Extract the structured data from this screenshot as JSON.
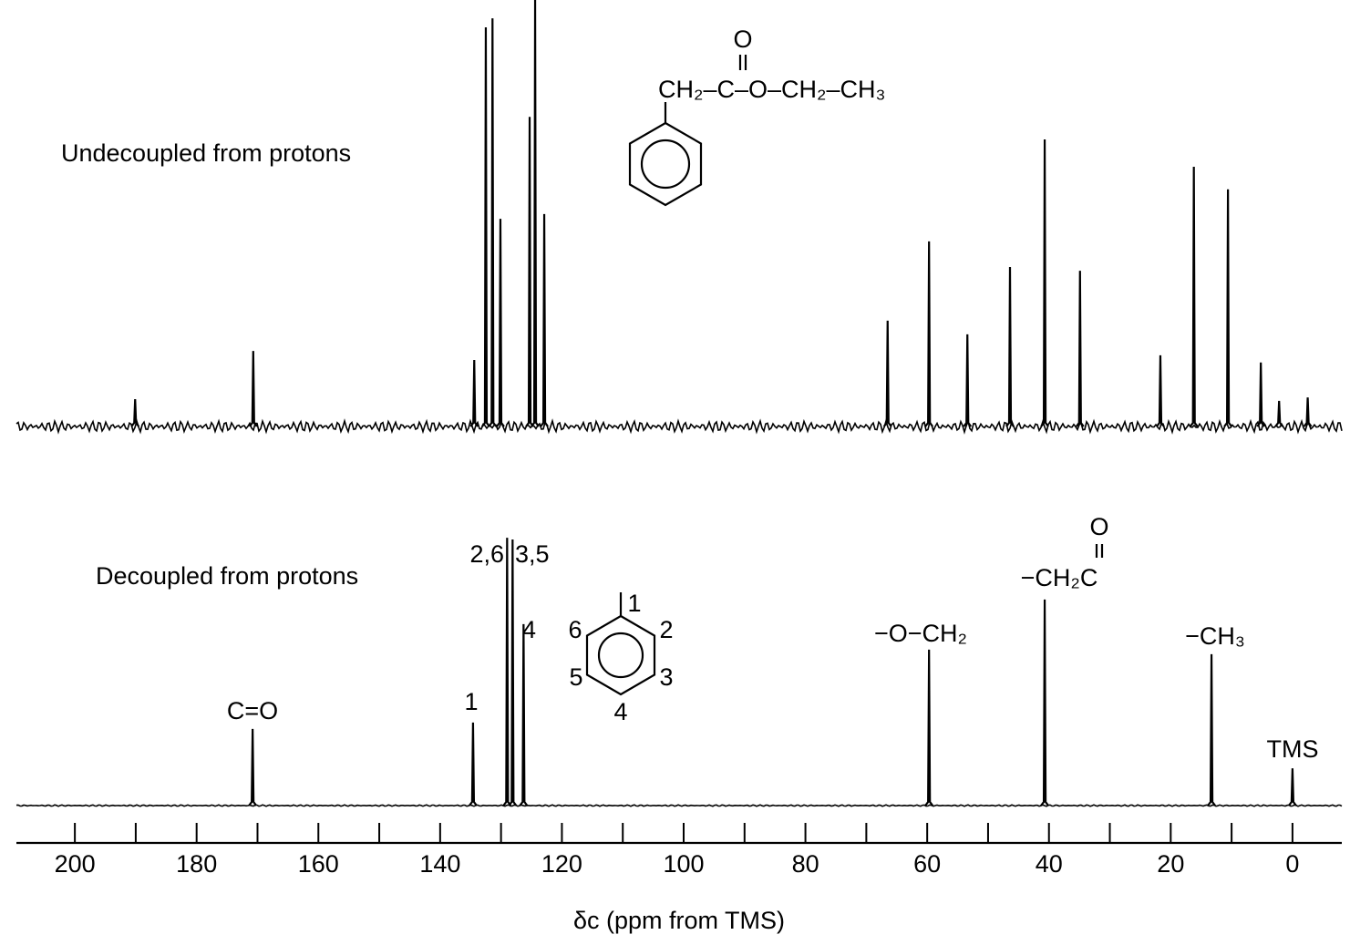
{
  "chart_data": [
    {
      "type": "spectrum",
      "title": "Undecoupled from protons",
      "x": [
        190.1,
        170.7,
        134.4,
        132.5,
        131.4,
        130.1,
        125.3,
        124.4,
        122.9,
        66.5,
        59.7,
        53.4,
        46.4,
        40.7,
        34.9,
        21.7,
        16.2,
        10.6,
        5.2,
        2.2,
        -2.5
      ],
      "values": [
        6.4,
        17.7,
        15.6,
        93.6,
        95.7,
        48.7,
        72.6,
        100,
        49.8,
        24.8,
        43.4,
        21.6,
        37.4,
        67.3,
        36.5,
        16.7,
        60.9,
        55.6,
        15,
        6,
        6.8
      ],
      "xlim": [
        209.6,
        -8.1
      ],
      "ylim": [
        0,
        100
      ],
      "color": "#000000",
      "annotations": [
        "CH₂–C–O–CH₂–CH₃",
        "O"
      ]
    },
    {
      "type": "spectrum",
      "title": "Decoupled from protons",
      "x": [
        170.8,
        134.6,
        129.0,
        128.1,
        126.3,
        59.7,
        40.7,
        13.3,
        0
      ],
      "values": [
        26.8,
        29,
        93.6,
        93,
        63.4,
        54.5,
        72,
        52.9,
        13
      ],
      "peak_labels": [
        "C=O",
        "1",
        "2,6",
        "3,5",
        "4",
        "−O−CH₂",
        "−CH₂C",
        "−CH₃",
        "TMS"
      ],
      "xlim": [
        209.6,
        -8.1
      ],
      "ylim": [
        0,
        100
      ],
      "color": "#000000",
      "xticks": [
        200,
        180,
        160,
        140,
        120,
        100,
        80,
        60,
        40,
        20,
        0
      ],
      "xminorticks": [
        190,
        170,
        150,
        130,
        110,
        90,
        70,
        50,
        30,
        10
      ],
      "xlabel": "δc (ppm from TMS)",
      "annotations": [
        "O"
      ],
      "ring_labels": [
        "1",
        "2",
        "3",
        "4",
        "5",
        "6"
      ]
    }
  ]
}
